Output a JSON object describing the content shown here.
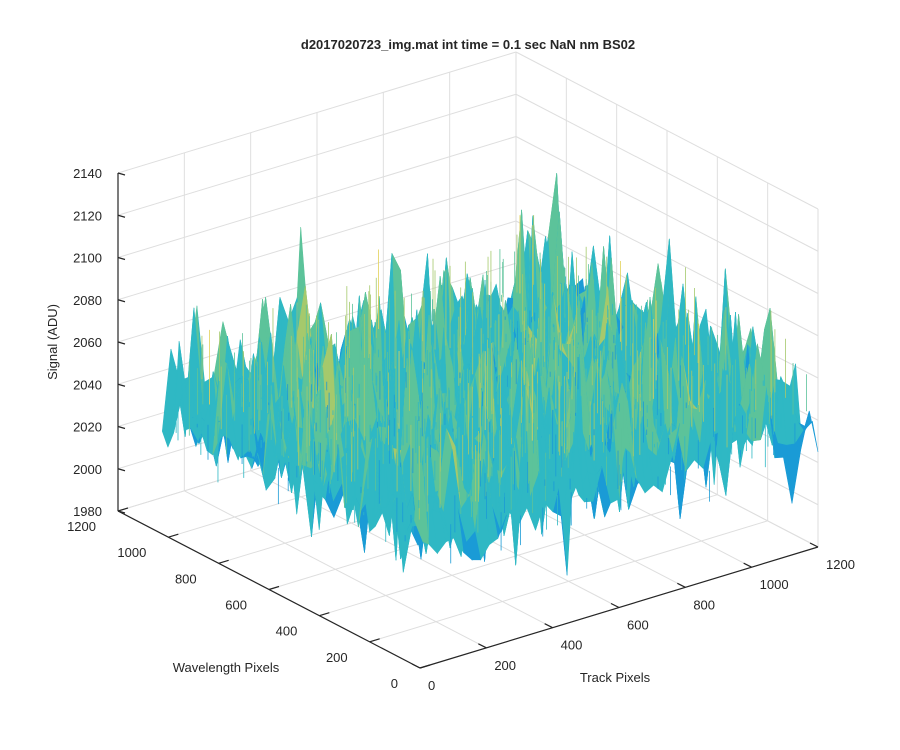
{
  "chart_data": {
    "type": "surface",
    "title": "d2017020723_img.mat int time = 0.1 sec  NaN nm BS02",
    "xlabel": "Track Pixels",
    "ylabel": "Wavelength Pixels",
    "zlabel": "Signal (ADU)",
    "xlim": [
      0,
      1200
    ],
    "ylim": [
      0,
      1200
    ],
    "zlim": [
      1980,
      2140
    ],
    "x_ticks": [
      "0",
      "200",
      "400",
      "600",
      "800",
      "1000",
      "1200"
    ],
    "y_ticks": [
      "0",
      "200",
      "400",
      "600",
      "800",
      "1000",
      "1200"
    ],
    "z_ticks": [
      "1980",
      "2000",
      "2020",
      "2040",
      "2060",
      "2080",
      "2100",
      "2120",
      "2140"
    ],
    "grid": true,
    "colormap": [
      "#0072bd",
      "#1a9bd6",
      "#2fb8c4",
      "#5cc39a",
      "#a5c96c",
      "#e3d25a"
    ],
    "surface_stats": {
      "baseline_signal": 2040,
      "typical_min": 2005,
      "typical_max": 2100,
      "peak_signal": 2135,
      "x_extent": [
        0,
        1200
      ],
      "y_extent": [
        0,
        1024
      ]
    }
  }
}
